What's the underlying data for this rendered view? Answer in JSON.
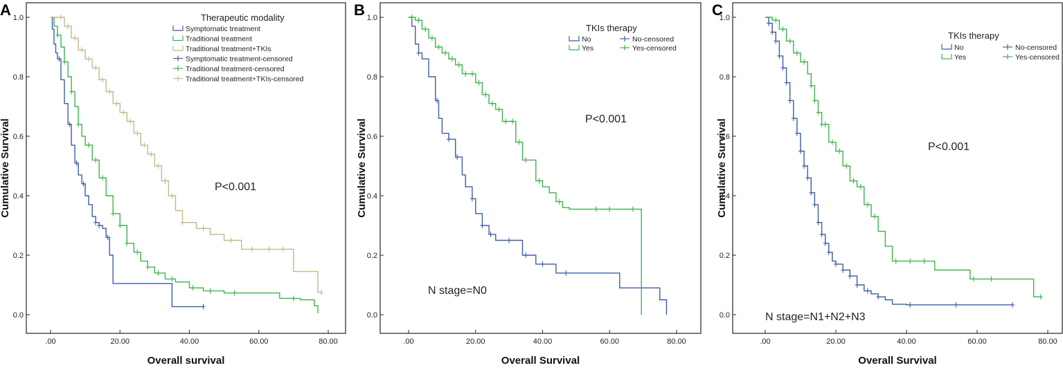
{
  "colors": {
    "blue": "#3d5ba8",
    "green": "#3cb44a",
    "tan": "#c3b88a",
    "frame": "#222222"
  },
  "chart_data": [
    {
      "type": "line",
      "panel": "A",
      "xlabel": "Overall survival",
      "ylabel": "Cumulative Survival",
      "xlim": [
        0,
        80
      ],
      "ylim": [
        0,
        1
      ],
      "xticks": [
        ".00",
        "20.00",
        "40.00",
        "60.00",
        "80.00"
      ],
      "yticks": [
        "0.0",
        "0.2",
        "0.4",
        "0.6",
        "0.8",
        "1.0"
      ],
      "legend_title": "Therapeutic modality",
      "legend": [
        "Symptomatic treatment",
        "Traditional treatment",
        "Traditional treatment+TKIs",
        "Symptomatic treatment-censored",
        "Traditional treatment-censored",
        "Traditional treatment+TKIs-censored"
      ],
      "annotations": [
        "P<0.001"
      ],
      "series": [
        {
          "name": "Symptomatic treatment",
          "color": "blue",
          "x": [
            0,
            0.5,
            1,
            1.5,
            2,
            3,
            4,
            5,
            6,
            7,
            8,
            9,
            10,
            11,
            12,
            13,
            14,
            15,
            16,
            17,
            18,
            20,
            24,
            30,
            34,
            35,
            40,
            44
          ],
          "y": [
            1.0,
            0.96,
            0.91,
            0.88,
            0.86,
            0.79,
            0.71,
            0.64,
            0.57,
            0.51,
            0.47,
            0.44,
            0.4,
            0.37,
            0.33,
            0.31,
            0.3,
            0.29,
            0.26,
            0.2,
            0.105,
            0.105,
            0.105,
            0.105,
            0.105,
            0.027,
            0.027,
            0.027
          ],
          "censored_x": [
            2.5,
            5.5,
            7.5,
            9.5,
            13,
            14,
            16.5,
            44
          ]
        },
        {
          "name": "Traditional treatment",
          "color": "green",
          "x": [
            0,
            1,
            2,
            3,
            4,
            5,
            6,
            7,
            8,
            9,
            10,
            12,
            14,
            16,
            18,
            20,
            22,
            24,
            26,
            28,
            30,
            33,
            36,
            40,
            44,
            50,
            55,
            60,
            66,
            72,
            76,
            77
          ],
          "y": [
            1.0,
            0.97,
            0.94,
            0.9,
            0.85,
            0.8,
            0.75,
            0.7,
            0.64,
            0.6,
            0.57,
            0.52,
            0.46,
            0.4,
            0.34,
            0.3,
            0.24,
            0.21,
            0.18,
            0.16,
            0.14,
            0.12,
            0.11,
            0.09,
            0.08,
            0.073,
            0.073,
            0.073,
            0.055,
            0.05,
            0.03,
            0.005
          ],
          "censored_x": [
            2,
            4,
            6,
            8,
            11,
            13,
            15,
            18,
            20,
            22,
            25,
            28,
            31,
            35,
            41,
            46,
            53,
            70
          ]
        },
        {
          "name": "Traditional treatment+TKIs",
          "color": "tan",
          "x": [
            0,
            2,
            4,
            6,
            8,
            10,
            12,
            14,
            16,
            18,
            20,
            22,
            24,
            26,
            28,
            30,
            32,
            34,
            36,
            38,
            42,
            46,
            50,
            55,
            60,
            65,
            69,
            70,
            74,
            76,
            77,
            78
          ],
          "y": [
            1.0,
            1.0,
            0.97,
            0.93,
            0.89,
            0.86,
            0.83,
            0.79,
            0.75,
            0.71,
            0.68,
            0.65,
            0.61,
            0.57,
            0.54,
            0.5,
            0.45,
            0.4,
            0.35,
            0.31,
            0.29,
            0.27,
            0.25,
            0.22,
            0.22,
            0.22,
            0.22,
            0.145,
            0.145,
            0.145,
            0.075,
            0.075
          ],
          "censored_x": [
            3,
            5,
            7,
            9,
            11,
            13,
            15,
            17,
            19,
            21,
            23,
            25,
            27,
            29,
            31,
            33,
            35,
            38,
            44,
            52,
            58,
            63,
            67,
            78
          ]
        }
      ]
    },
    {
      "type": "line",
      "panel": "B",
      "xlabel": "Overall Survival",
      "ylabel": "Cumulative Survival",
      "xlim": [
        0,
        80
      ],
      "ylim": [
        0,
        1
      ],
      "xticks": [
        ".00",
        "20.00",
        "40.00",
        "60.00",
        "80.00"
      ],
      "yticks": [
        "0.0",
        "0.2",
        "0.4",
        "0.6",
        "0.8",
        "1.0"
      ],
      "legend_title": "TKIs therapy",
      "legend": [
        "No",
        "Yes",
        "No-censored",
        "Yes-censored"
      ],
      "annotations": [
        "P<0.001",
        "N stage=N0"
      ],
      "series": [
        {
          "name": "No",
          "color": "blue",
          "x": [
            0,
            1,
            2,
            3,
            4,
            6,
            8,
            9,
            10,
            12,
            14,
            16,
            17,
            19,
            20,
            22,
            24,
            26,
            28,
            32,
            34,
            36,
            38,
            44,
            52,
            60,
            63,
            70,
            75,
            77
          ],
          "y": [
            1.0,
            0.97,
            0.91,
            0.88,
            0.86,
            0.8,
            0.72,
            0.66,
            0.61,
            0.59,
            0.53,
            0.47,
            0.43,
            0.39,
            0.34,
            0.3,
            0.27,
            0.25,
            0.25,
            0.25,
            0.2,
            0.2,
            0.17,
            0.14,
            0.14,
            0.14,
            0.09,
            0.09,
            0.05,
            0.0
          ],
          "censored_x": [
            3,
            8.5,
            12,
            14.5,
            19,
            22,
            24.5,
            30,
            35,
            40,
            47
          ]
        },
        {
          "name": "Yes",
          "color": "green",
          "x": [
            0,
            2,
            4,
            6,
            8,
            10,
            12,
            14,
            16,
            18,
            20,
            22,
            24,
            26,
            28,
            30,
            32,
            34,
            36,
            38,
            40,
            42,
            44,
            46,
            48,
            55,
            60,
            66,
            69,
            69.5
          ],
          "y": [
            1.0,
            0.99,
            0.96,
            0.93,
            0.9,
            0.88,
            0.86,
            0.84,
            0.81,
            0.81,
            0.78,
            0.74,
            0.71,
            0.69,
            0.65,
            0.65,
            0.58,
            0.52,
            0.52,
            0.45,
            0.43,
            0.41,
            0.38,
            0.36,
            0.355,
            0.355,
            0.355,
            0.355,
            0.355,
            0.0
          ],
          "censored_x": [
            1,
            3,
            5,
            7,
            9,
            11,
            13,
            15,
            17,
            19,
            21,
            23,
            25,
            27,
            29,
            31,
            33,
            35,
            39,
            45,
            56,
            60,
            67
          ]
        }
      ]
    },
    {
      "type": "line",
      "panel": "C",
      "xlabel": "Overall Survival",
      "ylabel": "Cumulative Survival",
      "xlim": [
        0,
        80
      ],
      "ylim": [
        0,
        1
      ],
      "xticks": [
        ".00",
        "20.00",
        "40.00",
        "60.00",
        "80.00"
      ],
      "yticks": [
        "0.0",
        "0.2",
        "0.4",
        "0.6",
        "0.8",
        "1.0"
      ],
      "legend_title": "TKIs therapy",
      "legend": [
        "No",
        "Yes",
        "No-censored",
        "Yes-censored"
      ],
      "annotations": [
        "P<0.001",
        "N stage=N1+N2+N3"
      ],
      "series": [
        {
          "name": "No",
          "color": "blue",
          "x": [
            0,
            1,
            2,
            3,
            4,
            5,
            6,
            7,
            8,
            9,
            10,
            11,
            12,
            13,
            14,
            15,
            16,
            17,
            18,
            19,
            20,
            22,
            24,
            26,
            28,
            30,
            32,
            34,
            36,
            40,
            50,
            60,
            70
          ],
          "y": [
            1.0,
            0.98,
            0.95,
            0.92,
            0.87,
            0.83,
            0.78,
            0.72,
            0.66,
            0.61,
            0.55,
            0.5,
            0.46,
            0.41,
            0.37,
            0.31,
            0.27,
            0.24,
            0.21,
            0.18,
            0.17,
            0.15,
            0.13,
            0.1,
            0.08,
            0.07,
            0.06,
            0.05,
            0.035,
            0.033,
            0.033,
            0.033,
            0.033
          ],
          "censored_x": [
            1,
            2,
            3,
            4,
            5,
            6,
            7,
            8,
            9,
            10,
            11,
            12,
            13,
            14,
            15,
            16,
            17,
            18,
            20,
            22,
            24,
            26,
            29,
            32,
            41,
            54,
            70
          ]
        },
        {
          "name": "Yes",
          "color": "green",
          "x": [
            0,
            2,
            4,
            6,
            8,
            10,
            12,
            13,
            14,
            15,
            16,
            18,
            20,
            22,
            24,
            26,
            28,
            30,
            32,
            34,
            36,
            38,
            40,
            44,
            48,
            50,
            55,
            58,
            62,
            70,
            76,
            78
          ],
          "y": [
            1.0,
            0.99,
            0.96,
            0.92,
            0.88,
            0.85,
            0.81,
            0.77,
            0.72,
            0.68,
            0.64,
            0.58,
            0.55,
            0.5,
            0.45,
            0.43,
            0.37,
            0.33,
            0.28,
            0.23,
            0.18,
            0.18,
            0.18,
            0.18,
            0.15,
            0.15,
            0.15,
            0.12,
            0.12,
            0.12,
            0.06,
            0.06
          ],
          "censored_x": [
            3,
            5,
            7,
            9,
            11,
            13,
            14,
            15,
            16,
            17,
            19,
            21,
            23,
            25,
            27,
            29,
            31,
            37,
            41,
            45,
            59,
            64,
            78
          ]
        }
      ]
    }
  ]
}
